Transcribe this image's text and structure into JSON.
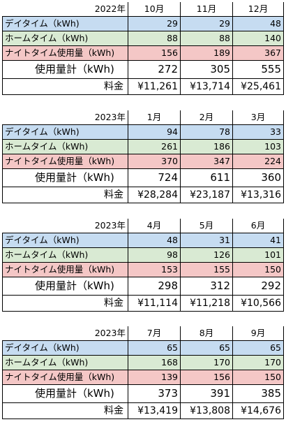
{
  "labels": {
    "daytime": "デイタイム（kWh)",
    "hometime": "ホームタイム（kWh)",
    "nighttime": "ナイトタイム使用量（kWh)",
    "total": "使用量計（kWh)",
    "fee": "料金"
  },
  "blocks": [
    {
      "year": "2022年",
      "months": [
        "10月",
        "11月",
        "12月"
      ],
      "daytime": [
        "29",
        "29",
        "48"
      ],
      "hometime": [
        "88",
        "88",
        "140"
      ],
      "nighttime": [
        "156",
        "189",
        "367"
      ],
      "total": [
        "272",
        "305",
        "555"
      ],
      "fee": [
        "¥11,261",
        "¥13,714",
        "¥25,461"
      ]
    },
    {
      "year": "2023年",
      "months": [
        "1月",
        "2月",
        "3月"
      ],
      "daytime": [
        "94",
        "78",
        "33"
      ],
      "hometime": [
        "261",
        "186",
        "103"
      ],
      "nighttime": [
        "370",
        "347",
        "224"
      ],
      "total": [
        "724",
        "611",
        "360"
      ],
      "fee": [
        "¥28,284",
        "¥23,187",
        "¥13,316"
      ]
    },
    {
      "year": "2023年",
      "months": [
        "4月",
        "5月",
        "6月"
      ],
      "daytime": [
        "48",
        "31",
        "41"
      ],
      "hometime": [
        "98",
        "126",
        "101"
      ],
      "nighttime": [
        "153",
        "155",
        "150"
      ],
      "total": [
        "298",
        "312",
        "292"
      ],
      "fee": [
        "¥11,114",
        "¥11,218",
        "¥10,566"
      ]
    },
    {
      "year": "2023年",
      "months": [
        "7月",
        "8月",
        "9月"
      ],
      "daytime": [
        "65",
        "65",
        "65"
      ],
      "hometime": [
        "168",
        "170",
        "170"
      ],
      "nighttime": [
        "139",
        "156",
        "150"
      ],
      "total": [
        "373",
        "391",
        "385"
      ],
      "fee": [
        "¥13,419",
        "¥13,808",
        "¥14,676"
      ]
    }
  ]
}
